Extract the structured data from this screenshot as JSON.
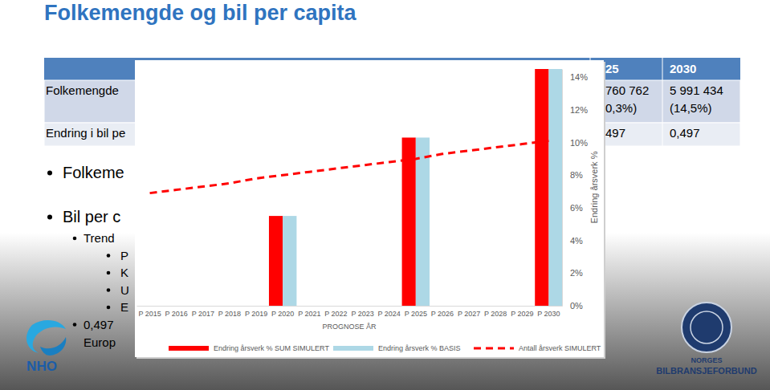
{
  "slide": {
    "title": "Folkemengde og bil per capita",
    "table": {
      "header": [
        "25",
        "2030"
      ],
      "rows": [
        {
          "label": "Folkemengde",
          "cells": [
            [
              "760 762",
              "0,3%)"
            ],
            [
              "5 991 434",
              "(14,5%)"
            ]
          ]
        },
        {
          "label": "Endring i bil pe",
          "cells": [
            [
              "497"
            ],
            [
              "0,497"
            ]
          ]
        }
      ]
    },
    "bullets": [
      {
        "text": [
          "Folkeme"
        ],
        "level": 1
      },
      {
        "text": [
          "Bil per c"
        ],
        "level": 1
      },
      {
        "text": [
          "Trend"
        ],
        "level": 2
      },
      {
        "text": [
          "P"
        ],
        "level": 3
      },
      {
        "text": [
          "K"
        ],
        "level": 3
      },
      {
        "text": [
          "U"
        ],
        "level": 3
      },
      {
        "text": [
          "E"
        ],
        "level": 3
      },
      {
        "text": [
          "0,497",
          "Europ"
        ],
        "level": 2
      }
    ],
    "logos": {
      "left": "NHO",
      "right": [
        "NORGES",
        "BILBRANSJEFORBUND"
      ]
    }
  },
  "chart_data": {
    "type": "bar",
    "x_label": "PROGNOSE ÅR",
    "y_label": "Endring årsverk %",
    "categories": [
      "P 2015",
      "P 2016",
      "P 2017",
      "P 2018",
      "P 2019",
      "P 2020",
      "P 2021",
      "P 2022",
      "P 2023",
      "P 2024",
      "P 2025",
      "P 2026",
      "P 2027",
      "P 2028",
      "P 2029",
      "P 2030"
    ],
    "series": [
      {
        "name": "Endring årsverk % SUM SIMULERT",
        "type": "bar",
        "color": "#ff0000",
        "values": [
          null,
          null,
          null,
          null,
          null,
          5.5,
          null,
          null,
          null,
          null,
          10.3,
          null,
          null,
          null,
          null,
          14.5
        ]
      },
      {
        "name": "Endring årsverk % BASIS",
        "type": "bar",
        "color": "#add8e6",
        "values": [
          null,
          null,
          null,
          null,
          null,
          5.5,
          null,
          null,
          null,
          null,
          10.3,
          null,
          null,
          null,
          null,
          14.5
        ]
      },
      {
        "name": "Antall årsverk SIMULERT",
        "type": "line",
        "line_style": "dashed",
        "color": "#ff0000",
        "values": [
          6.9,
          7.1,
          7.3,
          7.5,
          7.8,
          8.0,
          8.2,
          8.4,
          8.6,
          8.8,
          9.0,
          9.3,
          9.5,
          9.7,
          9.9,
          10.1
        ]
      }
    ],
    "ylim": [
      0,
      14.5
    ],
    "yticks": [
      {
        "value": 0,
        "label": "0%"
      },
      {
        "value": 2,
        "label": "2%"
      },
      {
        "value": 4,
        "label": "4%"
      },
      {
        "value": 6,
        "label": "6%"
      },
      {
        "value": 8,
        "label": "8%"
      },
      {
        "value": 10,
        "label": "10%"
      },
      {
        "value": 12,
        "label": "12%"
      },
      {
        "value": 14,
        "label": "14%"
      }
    ],
    "grid": false,
    "legend": "bottom"
  }
}
